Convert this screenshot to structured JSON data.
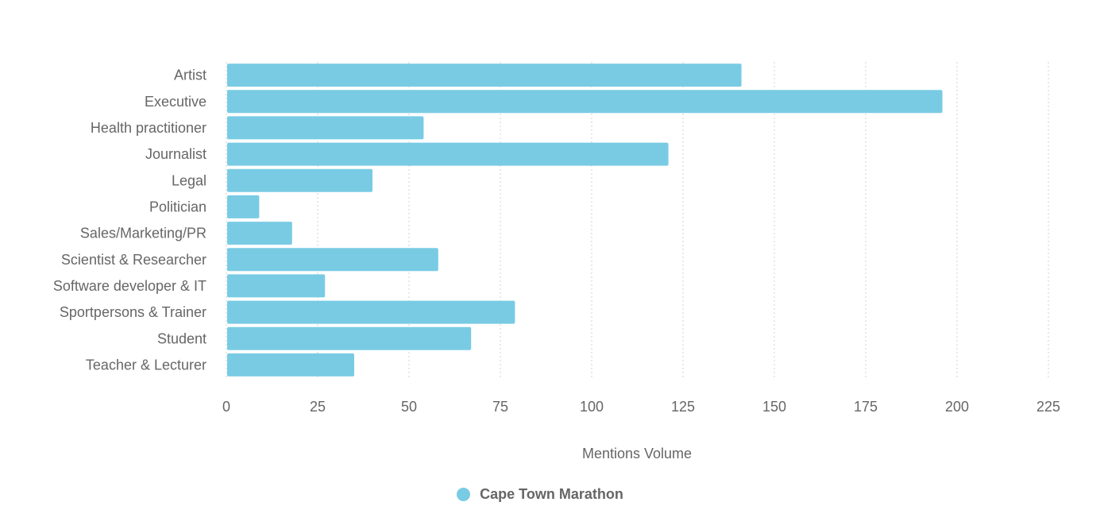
{
  "chart_data": {
    "type": "bar",
    "orientation": "horizontal",
    "categories": [
      "Artist",
      "Executive",
      "Health practitioner",
      "Journalist",
      "Legal",
      "Politician",
      "Sales/Marketing/PR",
      "Scientist & Researcher",
      "Software developer & IT",
      "Sportpersons & Trainer",
      "Student",
      "Teacher & Lecturer"
    ],
    "series": [
      {
        "name": "Cape Town Marathon",
        "color": "#79cbe4",
        "values": [
          141,
          196,
          54,
          121,
          40,
          9,
          18,
          58,
          27,
          79,
          67,
          35
        ]
      }
    ],
    "xlabel": "Mentions Volume",
    "xlim": [
      0,
      225
    ],
    "xticks": [
      "0",
      "25",
      "50",
      "75",
      "100",
      "125",
      "150",
      "175",
      "200",
      "225"
    ],
    "grid": true,
    "gridline_color": "#d0d0d0",
    "legend_position": "bottom-center"
  }
}
